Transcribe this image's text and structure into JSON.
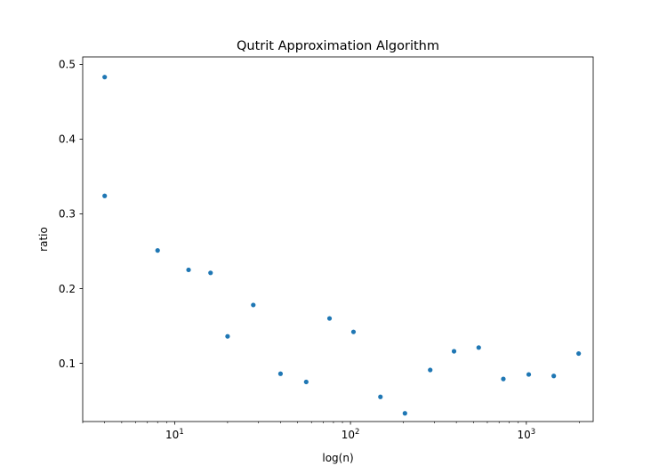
{
  "chart_data": {
    "type": "scatter",
    "title": "Qutrit Approximation Algorithm",
    "xlabel": "log(n)",
    "ylabel": "ratio",
    "x_scale": "log",
    "xlim": [
      3,
      2400
    ],
    "ylim": [
      0.022,
      0.51
    ],
    "x_major_ticks": [
      {
        "value": 10,
        "base": "10",
        "exp": "1"
      },
      {
        "value": 100,
        "base": "10",
        "exp": "2"
      },
      {
        "value": 1000,
        "base": "10",
        "exp": "3"
      }
    ],
    "y_ticks": [
      {
        "value": 0.1,
        "label": "0.1"
      },
      {
        "value": 0.2,
        "label": "0.2"
      },
      {
        "value": 0.3,
        "label": "0.3"
      },
      {
        "value": 0.4,
        "label": "0.4"
      },
      {
        "value": 0.5,
        "label": "0.5"
      }
    ],
    "grid": false,
    "marker_color": "#1f77b4",
    "points": [
      {
        "x": 4,
        "y": 0.483
      },
      {
        "x": 4,
        "y": 0.324
      },
      {
        "x": 8,
        "y": 0.251
      },
      {
        "x": 12,
        "y": 0.225
      },
      {
        "x": 16,
        "y": 0.221
      },
      {
        "x": 20,
        "y": 0.136
      },
      {
        "x": 28,
        "y": 0.178
      },
      {
        "x": 40,
        "y": 0.086
      },
      {
        "x": 56,
        "y": 0.075
      },
      {
        "x": 76,
        "y": 0.16
      },
      {
        "x": 104,
        "y": 0.142
      },
      {
        "x": 148,
        "y": 0.055
      },
      {
        "x": 204,
        "y": 0.033
      },
      {
        "x": 284,
        "y": 0.091
      },
      {
        "x": 388,
        "y": 0.116
      },
      {
        "x": 536,
        "y": 0.121
      },
      {
        "x": 740,
        "y": 0.079
      },
      {
        "x": 1032,
        "y": 0.085
      },
      {
        "x": 1432,
        "y": 0.083
      },
      {
        "x": 1984,
        "y": 0.113
      }
    ]
  }
}
